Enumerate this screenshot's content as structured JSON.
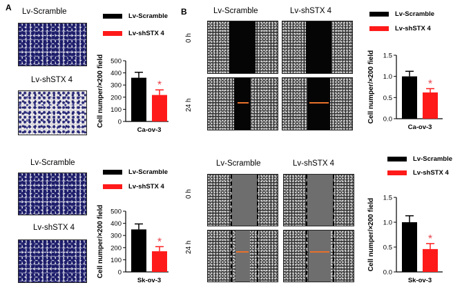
{
  "panels": {
    "a": "A",
    "b": "B"
  },
  "labels": {
    "scramble": "Lv-Scramble",
    "shstx4": "Lv-shSTX 4",
    "t0": "0 h",
    "t24": "24 h"
  },
  "legend": {
    "scramble": "Lv-Scramble",
    "shstx4": "Lv-shSTX 4"
  },
  "colors": {
    "scramble": "#000000",
    "shstx4": "#ff1a1a",
    "significance": "#e8424a",
    "wound_marker": "#e9722b"
  },
  "chart_data": [
    {
      "id": "a-top",
      "type": "bar",
      "categories": [
        "Lv-Scramble",
        "Lv-shSTX 4"
      ],
      "values": [
        360,
        218
      ],
      "errors": [
        45,
        42
      ],
      "xlabel": "Ca-ov-3",
      "ylabel": "Cell numper/×200 field",
      "ylim": [
        0,
        500
      ],
      "ticks": [
        "0",
        "100",
        "200",
        "300",
        "400",
        "500"
      ],
      "significance": "*"
    },
    {
      "id": "a-bottom",
      "type": "bar",
      "categories": [
        "Lv-Scramble",
        "Lv-shSTX 4"
      ],
      "values": [
        350,
        170
      ],
      "errors": [
        45,
        38
      ],
      "xlabel": "Sk-ov-3",
      "ylabel": "Cell numper/×200 field",
      "ylim": [
        0,
        500
      ],
      "ticks": [
        "0",
        "100",
        "200",
        "300",
        "400",
        "500"
      ],
      "significance": "*"
    },
    {
      "id": "b-top",
      "type": "bar",
      "categories": [
        "Lv-Scramble",
        "Lv-shSTX 4"
      ],
      "values": [
        1.0,
        0.62
      ],
      "errors": [
        0.12,
        0.09
      ],
      "xlabel": "Ca-ov-3",
      "ylabel": "Cell numper/×200 field",
      "ylim": [
        0,
        1.5
      ],
      "ticks": [
        "0.0",
        "0.5",
        "1.0",
        "1.5"
      ],
      "significance": "*"
    },
    {
      "id": "b-bottom",
      "type": "bar",
      "categories": [
        "Lv-Scramble",
        "Lv-shSTX 4"
      ],
      "values": [
        1.0,
        0.46
      ],
      "errors": [
        0.13,
        0.11
      ],
      "xlabel": "Sk-ov-3",
      "ylabel": "Cell numper/×200 field",
      "ylim": [
        0,
        1.5
      ],
      "ticks": [
        "0.0",
        "0.5",
        "1.0",
        "1.5"
      ],
      "significance": "*"
    }
  ]
}
